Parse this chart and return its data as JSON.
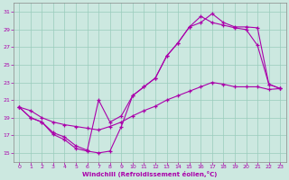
{
  "xlabel": "Windchill (Refroidissement éolien,°C)",
  "background_color": "#cce8e0",
  "grid_color": "#99ccbb",
  "line_color": "#aa00aa",
  "spine_color": "#888888",
  "xlim": [
    -0.5,
    23.5
  ],
  "ylim": [
    14,
    32
  ],
  "xticks": [
    0,
    1,
    2,
    3,
    4,
    5,
    6,
    7,
    8,
    9,
    10,
    11,
    12,
    13,
    14,
    15,
    16,
    17,
    18,
    19,
    20,
    21,
    22,
    23
  ],
  "yticks": [
    15,
    17,
    19,
    21,
    23,
    25,
    27,
    29,
    31
  ],
  "curve1_x": [
    0,
    1,
    2,
    3,
    4,
    5,
    6,
    7,
    8,
    9,
    10,
    11,
    12,
    13,
    14,
    15,
    16,
    17,
    18,
    19,
    20,
    21,
    22,
    23
  ],
  "curve1_y": [
    20.2,
    19.0,
    18.5,
    17.1,
    16.5,
    15.5,
    15.2,
    15.0,
    15.2,
    18.0,
    21.5,
    22.5,
    23.5,
    26.0,
    27.5,
    29.3,
    30.5,
    29.8,
    29.5,
    29.2,
    29.0,
    27.2,
    22.8,
    22.3
  ],
  "curve2_x": [
    0,
    1,
    2,
    3,
    4,
    5,
    6,
    7,
    8,
    9,
    10,
    11,
    12,
    13,
    14,
    15,
    16,
    17,
    18,
    19,
    20,
    21,
    22,
    23
  ],
  "curve2_y": [
    20.2,
    19.0,
    18.5,
    17.3,
    16.8,
    15.8,
    15.3,
    21.0,
    18.5,
    19.2,
    21.5,
    22.5,
    23.5,
    26.0,
    27.5,
    29.3,
    29.8,
    30.8,
    29.8,
    29.3,
    29.3,
    29.2,
    22.8,
    22.3
  ],
  "curve3_x": [
    0,
    1,
    2,
    3,
    4,
    5,
    6,
    7,
    8,
    9,
    10,
    11,
    12,
    13,
    14,
    15,
    16,
    17,
    18,
    19,
    20,
    21,
    22,
    23
  ],
  "curve3_y": [
    20.2,
    19.8,
    19.0,
    18.5,
    18.2,
    18.0,
    17.8,
    17.6,
    18.0,
    18.5,
    19.2,
    19.8,
    20.3,
    21.0,
    21.5,
    22.0,
    22.5,
    23.0,
    22.8,
    22.5,
    22.5,
    22.5,
    22.2,
    22.3
  ]
}
